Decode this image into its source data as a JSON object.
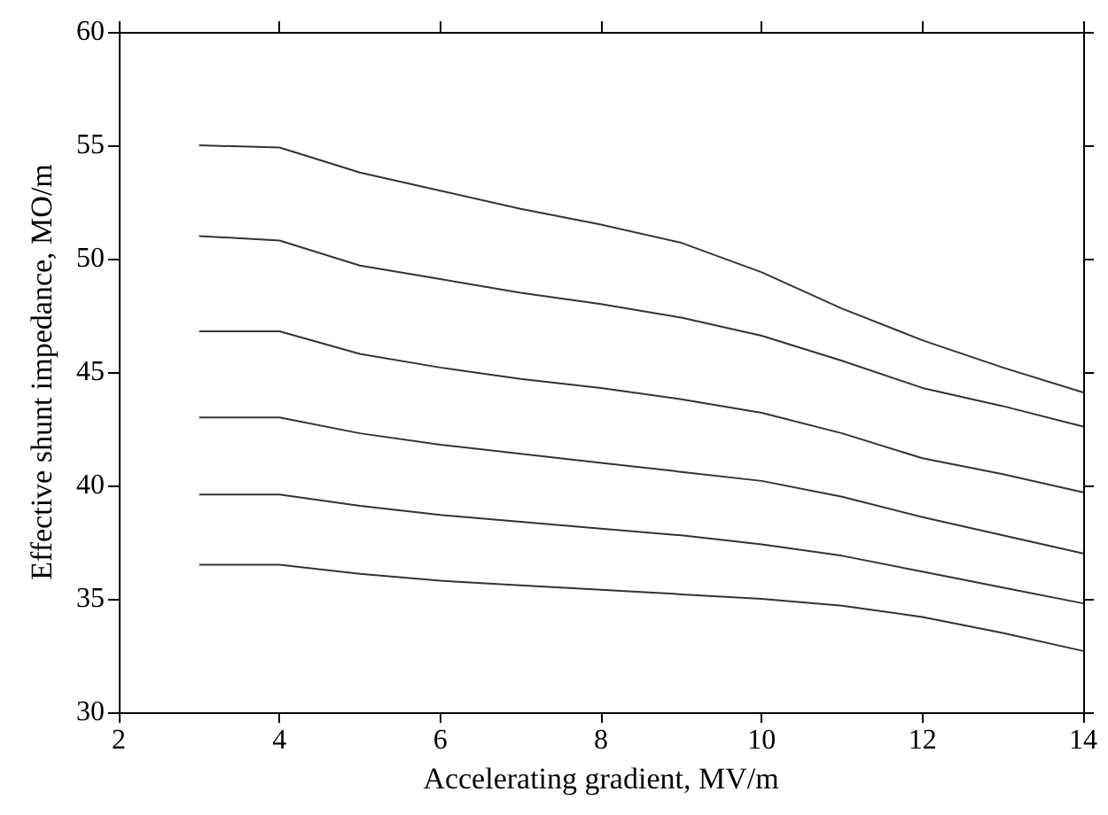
{
  "chart_data": {
    "type": "line",
    "xlabel": "Accelerating gradient, MV/m",
    "ylabel": "Effective shunt impedance, MO/m",
    "x": [
      3,
      4,
      5,
      6,
      7,
      8,
      9,
      10,
      11,
      12,
      13,
      14
    ],
    "xlim": [
      2,
      14
    ],
    "xticks": [
      2,
      4,
      6,
      8,
      10,
      12,
      14
    ],
    "ylim": [
      30,
      60
    ],
    "yticks": [
      30,
      35,
      40,
      45,
      50,
      55,
      60
    ],
    "marker": "none",
    "line_style": "solid",
    "series": [
      {
        "color": "#333333",
        "values": [
          55,
          54.9,
          53.8,
          53.0,
          52.2,
          51.5,
          50.7,
          49.4,
          47.8,
          46.4,
          45.2,
          44.1
        ]
      },
      {
        "color": "#333333",
        "values": [
          51,
          50.8,
          49.7,
          49.1,
          48.5,
          48.0,
          47.4,
          46.6,
          45.5,
          44.3,
          43.5,
          42.6
        ]
      },
      {
        "color": "#333333",
        "values": [
          46.8,
          46.8,
          45.8,
          45.2,
          44.7,
          44.3,
          43.8,
          43.2,
          42.3,
          41.2,
          40.5,
          39.7
        ]
      },
      {
        "color": "#333333",
        "values": [
          43,
          43,
          42.3,
          41.8,
          41.4,
          41.0,
          40.6,
          40.2,
          39.5,
          38.6,
          37.8,
          37.0
        ]
      },
      {
        "color": "#333333",
        "values": [
          39.6,
          39.6,
          39.1,
          38.7,
          38.4,
          38.1,
          37.8,
          37.4,
          36.9,
          36.2,
          35.5,
          34.8
        ]
      },
      {
        "color": "#333333",
        "values": [
          36.5,
          36.5,
          36.1,
          35.8,
          35.6,
          35.4,
          35.2,
          35.0,
          34.7,
          34.2,
          33.5,
          32.7
        ]
      }
    ]
  }
}
